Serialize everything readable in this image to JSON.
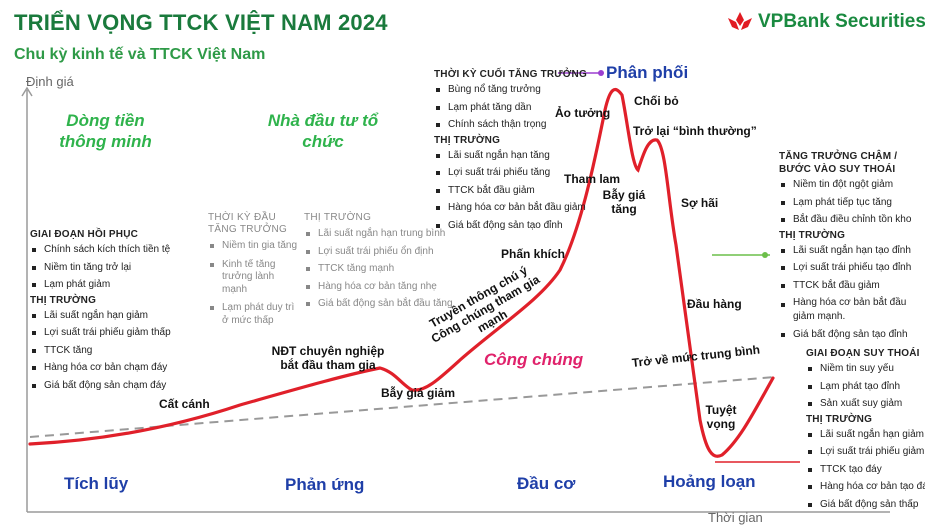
{
  "header": {
    "title": "TRIỂN VỌNG TTCK VIỆT NAM 2024",
    "subtitle": "Chu kỳ kinh tế và TTCK Việt Nam",
    "logo_text": "VPBank Securities"
  },
  "axes": {
    "y_label": "Định giá",
    "x_label": "Thời gian"
  },
  "investor_groups": {
    "smart_money": "Dòng tiền thông minh",
    "institutional": "Nhà đầu tư tổ chức"
  },
  "phases": {
    "accumulation": "Tích lũy",
    "reaction": "Phản ứng",
    "speculation": "Đầu cơ",
    "distribution": "Phân phối",
    "panic": "Hoảng loạn",
    "public": "Công chúng"
  },
  "curve_labels": {
    "takeoff": "Cất cánh",
    "pro_investors": "NĐT chuyên nghiệp bắt đầu tham gia",
    "bear_trap": "Bẫy giá giảm",
    "media": "Truyền thông chú ý Công chúng tham gia mạnh",
    "euphoria_excitement": "Phấn khích",
    "greed": "Tham lam",
    "illusion": "Ảo tưởng",
    "denial": "Chối bỏ",
    "bull_trap": "Bẫy giá tăng",
    "return_normal": "Trở lại “bình thường”",
    "fear": "Sợ hãi",
    "capitulation": "Đầu hàng",
    "mean_reversion": "Trở về mức trung bình",
    "despair": "Tuyệt vọng"
  },
  "recovery": {
    "stage_heading": "GIAI ĐOẠN HỒI PHỤC",
    "stage_items": [
      "Chính sách kích thích tiền tệ",
      "Niềm tin tăng trở lại",
      "Lạm phát giảm"
    ],
    "market_heading": "THỊ TRƯỜNG",
    "market_items": [
      "Lãi suất ngắn hạn giảm",
      "Lợi suất trái phiếu giảm thấp",
      "TTCK tăng",
      "Hàng hóa cơ bản chạm đáy",
      "Giá bất động sản chạm đáy"
    ]
  },
  "early_growth": {
    "stage_heading": "THỜI KỲ ĐẦU TĂNG TRƯỞNG",
    "stage_items": [
      "Niềm tin gia tăng",
      "Kinh tế tăng trưởng lành mạnh",
      "Lạm phát duy trì ở mức thấp"
    ],
    "market_heading": "THỊ TRƯỜNG",
    "market_items": [
      "Lãi suất ngắn hạn trung bình",
      "Lợi suất trái phiếu ổn định",
      "TTCK tăng mạnh",
      "Hàng hóa cơ bản tăng nhẹ",
      "Giá bất động sản bắt đầu tăng"
    ]
  },
  "late_growth": {
    "stage_heading": "THỜI KỲ CUỐI TĂNG TRƯỞNG",
    "stage_items": [
      "Bùng nổ tăng trưởng",
      "Lạm phát tăng dần",
      "Chính sách thận trọng"
    ],
    "market_heading": "THỊ TRƯỜNG",
    "market_items": [
      "Lãi suất ngắn hạn tăng",
      "Lợi suất trái phiếu tăng",
      "TTCK bắt đầu giảm",
      "Hàng hóa cơ bản bắt đầu giảm",
      "Giá bất động sản tạo đỉnh"
    ]
  },
  "slowdown": {
    "stage_heading": "TĂNG TRƯỞNG CHẬM / BƯỚC VÀO SUY THOÁI",
    "stage_items": [
      "Niềm tin đột ngột giảm",
      "Lạm phát tiếp tục tăng",
      "Bắt đầu điều chỉnh tồn kho"
    ],
    "market_heading": "THỊ TRƯỜNG",
    "market_items": [
      "Lãi suất ngắn hạn tạo đỉnh",
      "Lợi suất trái phiếu tạo đỉnh",
      "TTCK bắt đầu giảm",
      "Hàng hóa cơ bản bắt đầu giảm mạnh.",
      "Giá bất động sản tạo đỉnh"
    ]
  },
  "recession": {
    "stage_heading": "GIAI ĐOẠN SUY THOÁI",
    "stage_items": [
      "Niềm tin suy yếu",
      "Lạm phát tạo đỉnh",
      "Sản xuất suy giảm"
    ],
    "market_heading": "THỊ TRƯỜNG",
    "market_items": [
      "Lãi suất ngắn hạn giảm",
      "Lợi suất trái phiếu giảm",
      "TTCK tạo đáy",
      "Hàng hóa cơ bản tạo đáy",
      "Giá bất động sản thấp"
    ]
  },
  "colors": {
    "title_green": "#1a7a3c",
    "curve_red": "#e0202a",
    "phase_blue": "#1f3fa8",
    "public_pink": "#e0226b",
    "smart_green": "#2fb34c",
    "connector_purple": "#9b3fd0",
    "connector_green": "#6cbf4a"
  }
}
